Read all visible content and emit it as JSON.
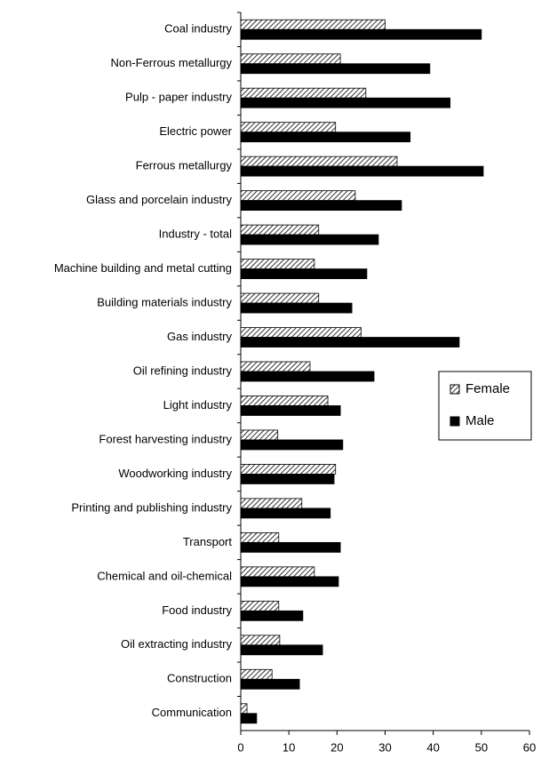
{
  "chart_data": {
    "type": "hbar",
    "categories": [
      "Coal industry",
      "Non-Ferrous metallurgy",
      "Pulp - paper industry",
      "Electric power",
      "Ferrous metallurgy",
      "Glass and porcelain industry",
      "Industry - total",
      "Machine building and metal cutting",
      "Building materials industry",
      "Gas industry",
      "Oil refining industry",
      "Light industry",
      "Forest harvesting industry",
      "Woodworking industry",
      "Printing and publishing industry",
      "Transport",
      "Chemical and oil-chemical",
      "Food industry",
      "Oil extracting industry",
      "Construction",
      "Communication"
    ],
    "series": [
      {
        "name": "Female",
        "color": "#000000",
        "pattern": "diagonal-hatch",
        "values": [
          30,
          20.7,
          26,
          19.7,
          32.5,
          23.8,
          16.2,
          15.3,
          16.2,
          25,
          14.4,
          18.1,
          7.7,
          19.7,
          12.7,
          7.9,
          15.3,
          7.9,
          8.1,
          6.5,
          1.3
        ]
      },
      {
        "name": "Male",
        "color": "#000000",
        "pattern": "solid",
        "values": [
          50,
          39.3,
          43.5,
          35.2,
          50.4,
          33.4,
          28.6,
          26.2,
          23.1,
          45.4,
          27.7,
          20.7,
          21.2,
          19.4,
          18.6,
          20.7,
          20.3,
          12.9,
          17,
          12.2,
          3.3
        ]
      }
    ],
    "xlim": [
      0,
      60
    ],
    "xticks": [
      0,
      10,
      20,
      30,
      40,
      50,
      60
    ],
    "grid": false,
    "legend": "right"
  }
}
